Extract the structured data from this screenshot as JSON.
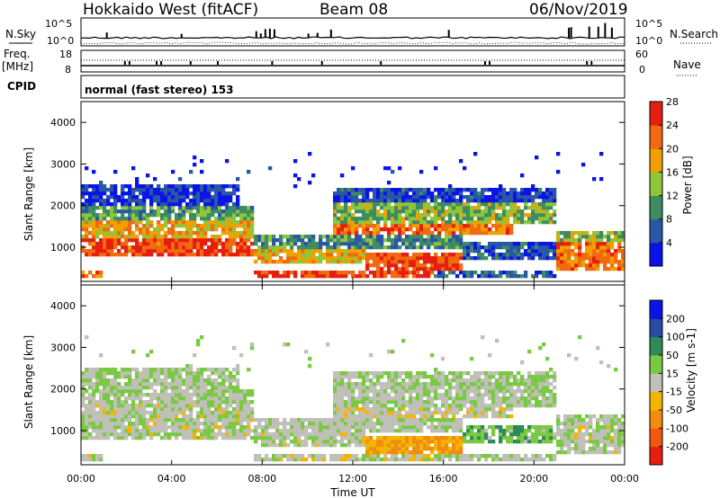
{
  "header": {
    "station": "Hokkaido West (fitACF)",
    "beam": "Beam 08",
    "date": "06/Nov/2019"
  },
  "strip_panel": {
    "nsky_label": "N.Sky",
    "nsearch_label": "N.Search",
    "freq_label": "Freq.",
    "freq_unit": "[MHz]",
    "nave_label": "Nave",
    "cpid_label": "CPID",
    "cpid_text": "normal (fast stereo) 153",
    "left_ticks_noise": [
      "10^5",
      "10^0"
    ],
    "right_ticks_noise": [
      "10^5",
      "10^0"
    ],
    "left_ticks_freq": [
      "18",
      "8"
    ],
    "right_ticks_nave": [
      "60",
      "0"
    ]
  },
  "x_axis": {
    "label": "Time UT",
    "ticks": [
      "00:00",
      "04:00",
      "08:00",
      "12:00",
      "16:00",
      "20:00",
      "00:00"
    ]
  },
  "chart_data": [
    {
      "type": "heatmap",
      "title": "Power",
      "xlabel": "Time UT",
      "ylabel": "Slant Range [km]",
      "xlim": [
        0,
        24
      ],
      "ylim": [
        180,
        4500
      ],
      "y_ticks": [
        "1000",
        "2000",
        "3000",
        "4000"
      ],
      "colorbar": {
        "label": "Power [dB]",
        "ticks": [
          "4",
          "8",
          "12",
          "16",
          "20",
          "24",
          "28"
        ],
        "colors": [
          "#0a14e6",
          "#2a56a6",
          "#3d8c62",
          "#8ec63a",
          "#f0a000",
          "#f06a10",
          "#e61e10"
        ]
      }
    },
    {
      "type": "heatmap",
      "title": "Velocity",
      "xlabel": "Time UT",
      "ylabel": "Slant Range [km]",
      "xlim": [
        0,
        24
      ],
      "ylim": [
        180,
        4500
      ],
      "y_ticks": [
        "1000",
        "2000",
        "3000",
        "4000"
      ],
      "colorbar": {
        "label": "Velocity [m s-1]",
        "ticks": [
          "-200",
          "-100",
          "-50",
          "-15",
          "15",
          "50",
          "100",
          "200"
        ],
        "colors": [
          "#e61e10",
          "#f05a10",
          "#f08c10",
          "#f5b400",
          "#c0bfb8",
          "#7ac943",
          "#2e8b57",
          "#2a4aa6",
          "#0a14e6"
        ]
      }
    }
  ]
}
